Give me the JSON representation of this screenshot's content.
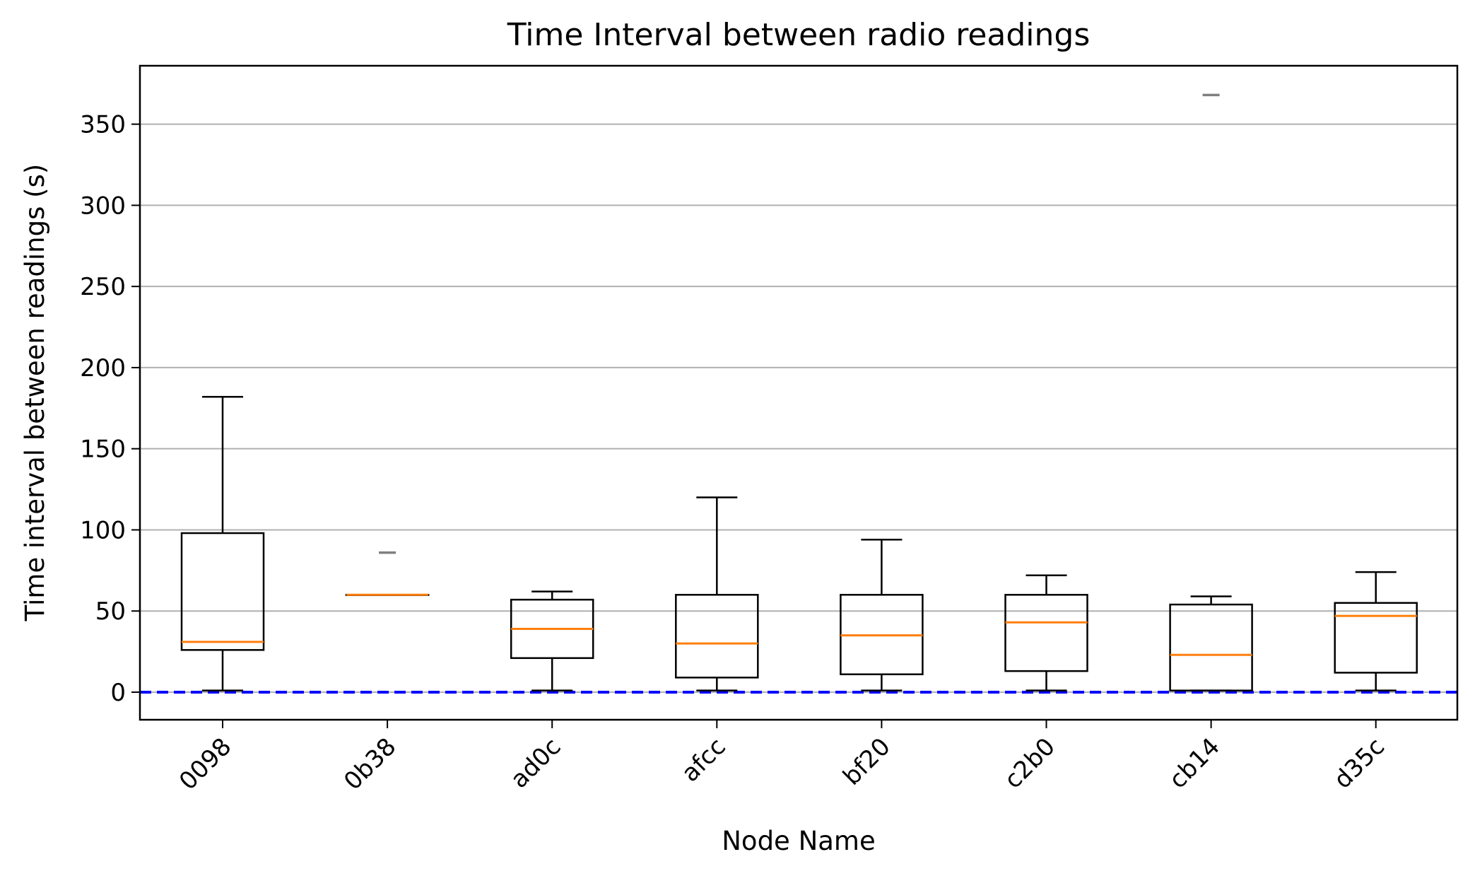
{
  "chart_data": {
    "type": "boxplot",
    "title": "Time Interval between radio readings",
    "xlabel": "Node Name",
    "ylabel": "Time interval between readings (s)",
    "ylim": [
      -17,
      386
    ],
    "y_ticks": [
      0,
      50,
      100,
      150,
      200,
      250,
      300,
      350
    ],
    "grid": "horizontal",
    "reference_line": {
      "y": 0,
      "style": "dashed",
      "color": "#0000ff"
    },
    "colors": {
      "box": "#000000",
      "median": "#ff7f0e",
      "grid": "#b0b0b0",
      "flier": "#808080"
    },
    "categories": [
      "0098",
      "0b38",
      "ad0c",
      "afcc",
      "bf20",
      "c2b0",
      "cb14",
      "d35c"
    ],
    "boxes": [
      {
        "whisker_low": 1,
        "q1": 26,
        "median": 31,
        "q3": 98,
        "whisker_high": 182,
        "fliers": []
      },
      {
        "whisker_low": 60,
        "q1": 60,
        "median": 60,
        "q3": 60,
        "whisker_high": 60,
        "fliers": [
          86
        ]
      },
      {
        "whisker_low": 1,
        "q1": 21,
        "median": 39,
        "q3": 57,
        "whisker_high": 62,
        "fliers": []
      },
      {
        "whisker_low": 1,
        "q1": 9,
        "median": 30,
        "q3": 60,
        "whisker_high": 120,
        "fliers": []
      },
      {
        "whisker_low": 1,
        "q1": 11,
        "median": 35,
        "q3": 60,
        "whisker_high": 94,
        "fliers": []
      },
      {
        "whisker_low": 1,
        "q1": 13,
        "median": 43,
        "q3": 60,
        "whisker_high": 72,
        "fliers": []
      },
      {
        "whisker_low": 1,
        "q1": 1,
        "median": 23,
        "q3": 54,
        "whisker_high": 59,
        "fliers": [
          368
        ]
      },
      {
        "whisker_low": 1,
        "q1": 12,
        "median": 47,
        "q3": 55,
        "whisker_high": 74,
        "fliers": []
      }
    ]
  }
}
